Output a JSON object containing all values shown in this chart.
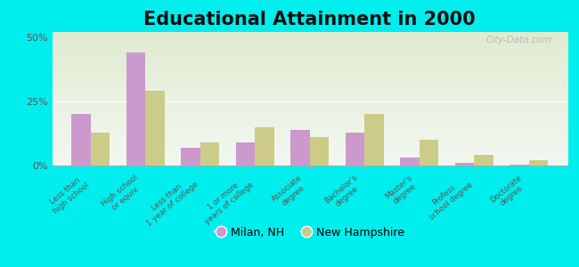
{
  "title": "Educational Attainment in 2000",
  "categories": [
    "Less than\nhigh school",
    "High school\nor equiv.",
    "Less than\n1 year of college",
    "1 or more\nyears of college",
    "Associate\ndegree",
    "Bachelor's\ndegree",
    "Master's\ndegree",
    "Profess.\nschool degree",
    "Doctorate\ndegree"
  ],
  "milan_values": [
    20,
    44,
    7,
    9,
    14,
    13,
    3,
    1,
    0.5
  ],
  "nh_values": [
    13,
    29,
    9,
    15,
    11,
    20,
    10,
    4,
    2
  ],
  "milan_color": "#cc99cc",
  "nh_color": "#cccc88",
  "ylim": [
    0,
    52
  ],
  "yticks": [
    0,
    25,
    50
  ],
  "ytick_labels": [
    "0%",
    "25%",
    "50%"
  ],
  "background_color": "#00eeee",
  "legend_labels": [
    "Milan, NH",
    "New Hampshire"
  ],
  "watermark": "City-Data.com",
  "title_fontsize": 15,
  "bar_width": 0.35
}
